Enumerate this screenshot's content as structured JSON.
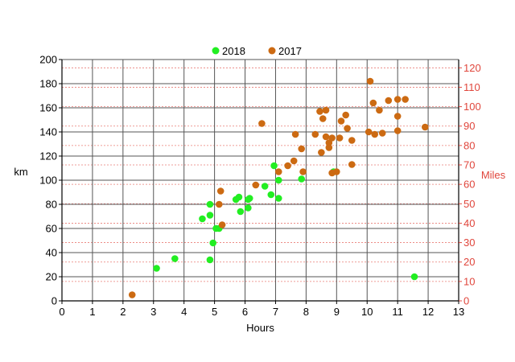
{
  "chart_data": {
    "type": "scatter",
    "xlabel": "Hours",
    "ylabel": "km",
    "y2label": "Miles",
    "xlim": [
      0,
      13
    ],
    "ylim": [
      0,
      200
    ],
    "y2lim": [
      0,
      124.27
    ],
    "x_ticks": [
      0,
      1,
      2,
      3,
      4,
      5,
      6,
      7,
      8,
      9,
      10,
      11,
      12,
      13
    ],
    "y_ticks": [
      0,
      20,
      40,
      60,
      80,
      100,
      120,
      140,
      160,
      180,
      200
    ],
    "y2_ticks": [
      0,
      10,
      20,
      30,
      40,
      50,
      60,
      70,
      80,
      90,
      100,
      110,
      120
    ],
    "grid": true,
    "legend_position": "top-center",
    "colors": {
      "s2018": "#22ee22",
      "s2017": "#cc6a12",
      "right_axis": "#e0463c",
      "grid_major": "#555555",
      "grid_minor": "#e0463c"
    },
    "series": [
      {
        "name": "2018",
        "color": "#22ee22",
        "points": [
          [
            3.1,
            27
          ],
          [
            3.7,
            35
          ],
          [
            4.6,
            68
          ],
          [
            4.85,
            80
          ],
          [
            4.85,
            71
          ],
          [
            4.85,
            34
          ],
          [
            4.95,
            48
          ],
          [
            5.05,
            60
          ],
          [
            5.15,
            60
          ],
          [
            5.7,
            84
          ],
          [
            5.8,
            86
          ],
          [
            5.85,
            74
          ],
          [
            6.1,
            84
          ],
          [
            6.15,
            85
          ],
          [
            6.1,
            77
          ],
          [
            6.65,
            95
          ],
          [
            6.85,
            88
          ],
          [
            6.95,
            112
          ],
          [
            7.1,
            100
          ],
          [
            7.1,
            85
          ],
          [
            7.85,
            101
          ],
          [
            8.9,
            107
          ],
          [
            11.55,
            20
          ]
        ]
      },
      {
        "name": "2017",
        "color": "#cc6a12",
        "points": [
          [
            2.3,
            5
          ],
          [
            5.15,
            80
          ],
          [
            5.2,
            91
          ],
          [
            5.25,
            63
          ],
          [
            6.35,
            96
          ],
          [
            6.55,
            147
          ],
          [
            7.1,
            107
          ],
          [
            7.4,
            112
          ],
          [
            7.6,
            116
          ],
          [
            7.65,
            138
          ],
          [
            7.85,
            126
          ],
          [
            7.9,
            107
          ],
          [
            8.3,
            138
          ],
          [
            8.45,
            157
          ],
          [
            8.5,
            123
          ],
          [
            8.55,
            151
          ],
          [
            8.65,
            158
          ],
          [
            8.65,
            136
          ],
          [
            8.75,
            131
          ],
          [
            8.75,
            127
          ],
          [
            8.85,
            135
          ],
          [
            8.85,
            106
          ],
          [
            9.0,
            107
          ],
          [
            9.1,
            135
          ],
          [
            9.15,
            149
          ],
          [
            9.3,
            154
          ],
          [
            9.35,
            143
          ],
          [
            9.5,
            133
          ],
          [
            9.5,
            113
          ],
          [
            10.05,
            140
          ],
          [
            10.1,
            182
          ],
          [
            10.2,
            164
          ],
          [
            10.25,
            138
          ],
          [
            10.4,
            158
          ],
          [
            10.5,
            139
          ],
          [
            10.7,
            166
          ],
          [
            11.0,
            167
          ],
          [
            11.0,
            153
          ],
          [
            11.0,
            141
          ],
          [
            11.25,
            167
          ],
          [
            11.9,
            144
          ]
        ]
      }
    ]
  }
}
